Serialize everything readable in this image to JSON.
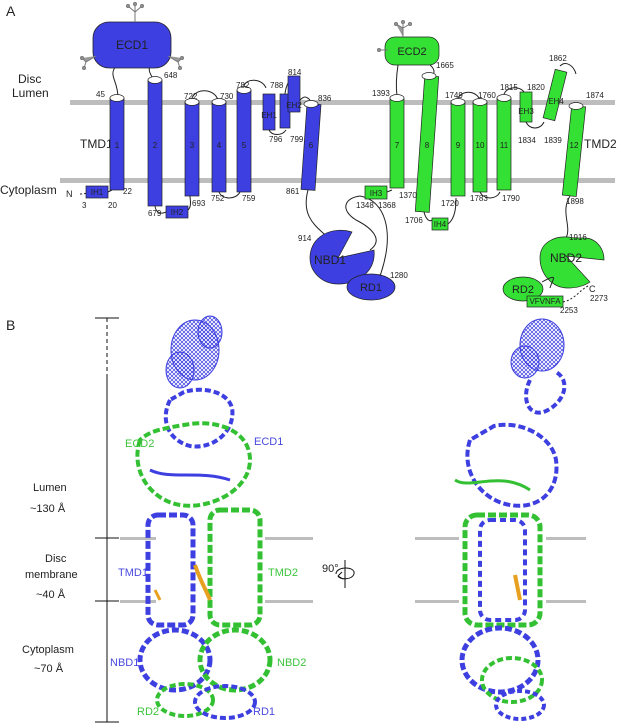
{
  "panels": {
    "a": "A",
    "b": "B"
  },
  "colors": {
    "blue": "#3d3fe0",
    "green": "#33e033",
    "membrane": "#bdbdbd",
    "ligand": "#e8a020"
  },
  "panelA": {
    "disc": "Disc",
    "lumen": "Lumen",
    "cytoplasm": "Cytoplasm",
    "tmd1": "TMD1",
    "tmd2": "TMD2",
    "nterm": "N",
    "cterm": "C",
    "domains": {
      "ecd1": "ECD1",
      "ecd2": "ECD2",
      "nbd1": "NBD1",
      "nbd2": "NBD2",
      "rd1": "RD1",
      "rd2": "RD2",
      "ih1": "IH1",
      "ih2": "IH2",
      "ih3": "IH3",
      "ih4": "IH4",
      "eh1": "EH1",
      "eh2": "EH2",
      "eh3": "EH3",
      "eh4": "EH4",
      "motif": "VFVNFA"
    },
    "helices": [
      "1",
      "2",
      "3",
      "4",
      "5",
      "6",
      "7",
      "8",
      "9",
      "10",
      "11",
      "12"
    ],
    "residues": [
      "45",
      "22",
      "3",
      "20",
      "648",
      "679",
      "693",
      "722",
      "730",
      "752",
      "759",
      "782",
      "788",
      "796",
      "799",
      "814",
      "836",
      "861",
      "914",
      "1280",
      "1393",
      "1348",
      "1368",
      "1370",
      "1665",
      "1706",
      "1720",
      "1749",
      "1760",
      "1783",
      "1790",
      "1815",
      "1820",
      "1834",
      "1839",
      "1862",
      "1874",
      "1898",
      "1916",
      "2253",
      "2273"
    ]
  },
  "panelB": {
    "lumen": "Lumen",
    "lumen_size": "~130 Å",
    "disc": "Disc",
    "membrane": "membrane",
    "membrane_size": "~40 Å",
    "cytoplasm": "Cytoplasm",
    "cytoplasm_size": "~70 Å",
    "rotation": "90°",
    "labels": {
      "ecd1": "ECD1",
      "ecd2": "ECD2",
      "tmd1": "TMD1",
      "tmd2": "TMD2",
      "nbd1": "NBD1",
      "nbd2": "NBD2",
      "rd1": "RD1",
      "rd2": "RD2"
    }
  }
}
